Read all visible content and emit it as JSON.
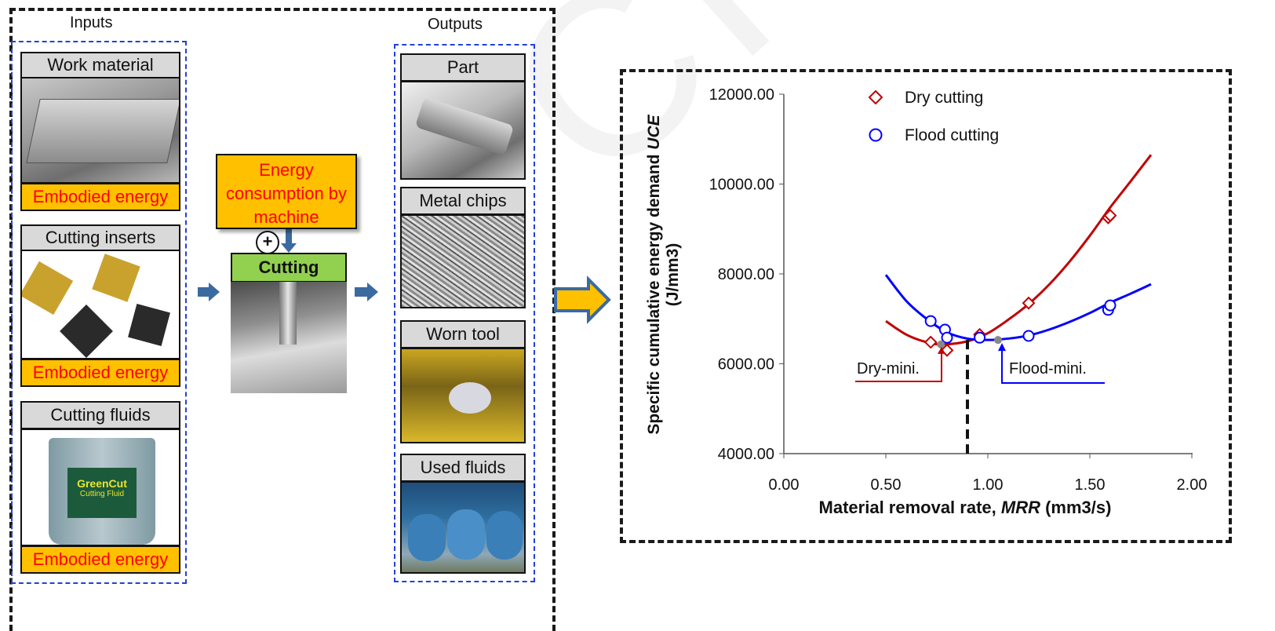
{
  "inputs": {
    "title": "Inputs",
    "items": [
      {
        "head": "Work material",
        "energy": "Embodied energy"
      },
      {
        "head": "Cutting inserts",
        "energy": "Embodied energy"
      },
      {
        "head": "Cutting fluids",
        "energy": "Embodied energy"
      }
    ],
    "fluid_label": "GreenCut",
    "fluid_sub": "Cutting Fluid"
  },
  "process": {
    "energy_line1": "Energy",
    "energy_line2": "consumption by",
    "energy_line3": "machine",
    "plus": "+",
    "cutting": "Cutting"
  },
  "outputs": {
    "title": "Outputs",
    "items": [
      {
        "head": "Part"
      },
      {
        "head": "Metal chips"
      },
      {
        "head": "Worn tool"
      },
      {
        "head": "Used fluids"
      }
    ]
  },
  "colors": {
    "energy_fill": "#ffc000",
    "energy_text": "#ff0000",
    "cutting_fill": "#92d050",
    "dry": "#c00000",
    "flood": "#0000ff",
    "flow_arrow": "#3b6aa0"
  },
  "chart_data": {
    "type": "scatter",
    "xlabel_plain": "Material removal rate, ",
    "xlabel_italic": "MRR",
    "xlabel_unit": " (mm3/s)",
    "ylabel_plain": "Specific cumulative energy demand ",
    "ylabel_italic": "UCE",
    "ylabel_unit": "(J/mm3)",
    "xlim": [
      0.0,
      2.0
    ],
    "ylim": [
      4000,
      12000
    ],
    "x_ticks": [
      "0.00",
      "0.50",
      "1.00",
      "1.50",
      "2.00"
    ],
    "y_ticks": [
      "4000.00",
      "6000.00",
      "8000.00",
      "10000.00",
      "12000.00"
    ],
    "legend_position": "top-center",
    "series": [
      {
        "name": "Dry cutting",
        "marker": "diamond",
        "points": [
          [
            0.72,
            6480
          ],
          [
            0.8,
            6300
          ],
          [
            0.96,
            6650
          ],
          [
            1.2,
            7350
          ],
          [
            1.59,
            9250
          ],
          [
            1.6,
            9300
          ]
        ],
        "fit": [
          [
            0.5,
            6950
          ],
          [
            0.6,
            6650
          ],
          [
            0.7,
            6480
          ],
          [
            0.78,
            6430
          ],
          [
            0.9,
            6500
          ],
          [
            1.0,
            6680
          ],
          [
            1.1,
            6980
          ],
          [
            1.2,
            7330
          ],
          [
            1.3,
            7760
          ],
          [
            1.4,
            8270
          ],
          [
            1.5,
            8850
          ],
          [
            1.6,
            9480
          ],
          [
            1.7,
            10060
          ],
          [
            1.8,
            10650
          ]
        ]
      },
      {
        "name": "Flood cutting",
        "marker": "circle",
        "points": [
          [
            0.72,
            6950
          ],
          [
            0.79,
            6760
          ],
          [
            0.8,
            6580
          ],
          [
            0.96,
            6580
          ],
          [
            1.2,
            6620
          ],
          [
            1.59,
            7200
          ],
          [
            1.6,
            7300
          ]
        ],
        "fit": [
          [
            0.5,
            7980
          ],
          [
            0.6,
            7400
          ],
          [
            0.7,
            7000
          ],
          [
            0.8,
            6700
          ],
          [
            0.9,
            6560
          ],
          [
            1.0,
            6530
          ],
          [
            1.1,
            6560
          ],
          [
            1.2,
            6630
          ],
          [
            1.3,
            6760
          ],
          [
            1.4,
            6930
          ],
          [
            1.5,
            7130
          ],
          [
            1.6,
            7360
          ],
          [
            1.7,
            7560
          ],
          [
            1.8,
            7770
          ]
        ]
      }
    ],
    "minima": [
      {
        "label": "Dry-mini.",
        "x": 0.77,
        "y": 6430
      },
      {
        "label": "Flood-mini.",
        "x": 1.05,
        "y": 6530
      }
    ],
    "divider_x": 0.9
  }
}
